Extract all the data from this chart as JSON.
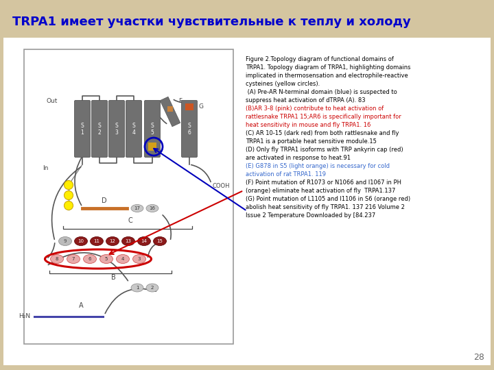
{
  "title": "TRPA1 имеет участки чувствительные к теплу и холоду",
  "title_color": "#0000CC",
  "title_fontsize": 13,
  "background_color": "#D4C5A0",
  "slide_bg": "#D4C5A0",
  "page_number": "28",
  "figure_text_lines": [
    {
      "text": "Figure 2.Topology diagram of functional domains of",
      "color": "#000000"
    },
    {
      "text": "TRPA1. Topology diagram of TRPA1, highlighting domains",
      "color": "#000000"
    },
    {
      "text": "implicated in thermosensation and electrophile-reactive",
      "color": "#000000"
    },
    {
      "text": "cysteines (yellow circles).",
      "color": "#000000"
    },
    {
      "text": " (A) Pre-AR N-terminal domain (blue) is suspected to",
      "color": "#000000"
    },
    {
      "text": "suppress heat activation of dTRPA (A). 83",
      "color": "#000000"
    },
    {
      "text": "(B)AR 3-8 (pink) contribute to heat activation of",
      "color": "#CC0000"
    },
    {
      "text": "rattlesnake TRPA1 15;AR6 is specifically important for",
      "color": "#CC0000"
    },
    {
      "text": "heat sensitivity in mouse and fly TRPA1. 16",
      "color": "#CC0000"
    },
    {
      "text": "(C) AR 10-15 (dark red) from both rattlesnake and fly",
      "color": "#000000"
    },
    {
      "text": "TRPA1 is a portable heat sensitive module.15",
      "color": "#000000"
    },
    {
      "text": "(D) Only fly TRPA1 isoforms with TRP ankyrin cap (red)",
      "color": "#000000"
    },
    {
      "text": "are activated in response to heat.91",
      "color": "#000000"
    },
    {
      "text": "(E) G878 in S5 (light orange) is necessary for cold",
      "color": "#3366CC"
    },
    {
      "text": "activation of rat TRPA1. 119",
      "color": "#3366CC"
    },
    {
      "text": "(F) Point mutation of R1073 or N1066 and I1067 in PH",
      "color": "#000000"
    },
    {
      "text": "(orange) eliminate heat activation of fly  TRPA1.137",
      "color": "#000000"
    },
    {
      "text": "(G) Point mutation of L1105 and I1106 in S6 (orange red)",
      "color": "#000000"
    },
    {
      "text": "abolish heat sensitivity of fly TRPA1. 137 216 Volume 2",
      "color": "#000000"
    },
    {
      "text": "Issue 2 Temperature Downloaded by [84.237",
      "color": "#000000"
    }
  ]
}
